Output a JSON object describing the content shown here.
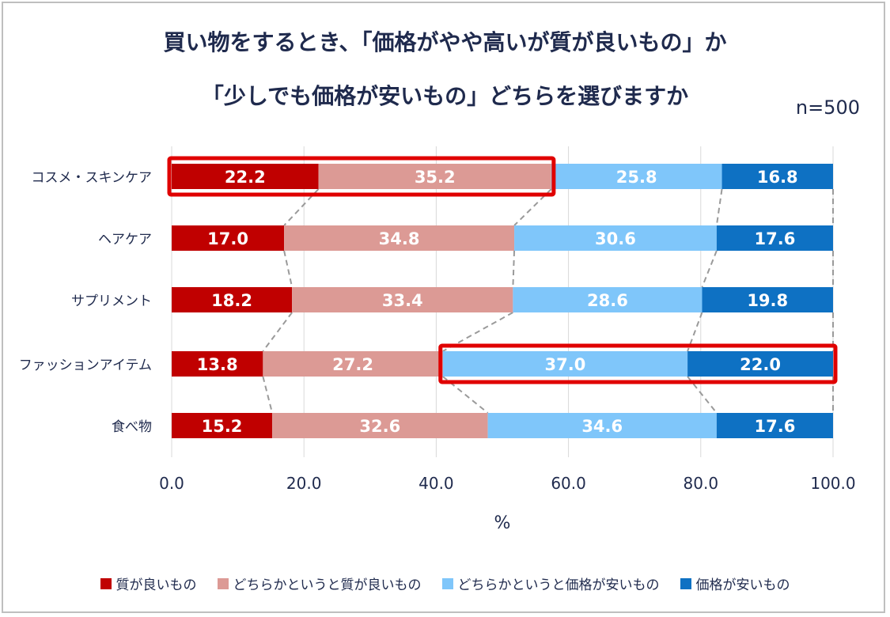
{
  "title_line1": "買い物をするとき、「価格がやや高いが質が良いもの」か",
  "title_line2": "「少しでも価格が安いもの」どちらを選びますか",
  "sample_size": "n=500",
  "chart_data": {
    "type": "bar",
    "orientation": "horizontal",
    "stacked": true,
    "categories": [
      "コスメ・スキンケア",
      "ヘアケア",
      "サプリメント",
      "ファッションアイテム",
      "食べ物"
    ],
    "series": [
      {
        "name": "質が良いもの",
        "color": "#c00000",
        "values": [
          22.2,
          17.0,
          18.2,
          13.8,
          15.2
        ]
      },
      {
        "name": "どちらかというと質が良いもの",
        "color": "#dc9a95",
        "values": [
          35.2,
          34.8,
          33.4,
          27.2,
          32.6
        ]
      },
      {
        "name": "どちらかというと価格が安いもの",
        "color": "#7fc6fa",
        "values": [
          25.8,
          30.6,
          28.6,
          37.0,
          34.6
        ]
      },
      {
        "name": "価格が安いもの",
        "color": "#0e71c3",
        "values": [
          16.8,
          17.6,
          19.8,
          22.0,
          17.6
        ]
      }
    ],
    "xlabel": "%",
    "xlim": [
      0,
      100
    ],
    "xticks": [
      "0.0",
      "20.0",
      "40.0",
      "60.0",
      "80.0",
      "100.0"
    ],
    "highlights": [
      {
        "category": "コスメ・スキンケア",
        "series": [
          "質が良いもの",
          "どちらかというと質が良いもの"
        ],
        "color": "#e00000"
      },
      {
        "category": "ファッションアイテム",
        "series": [
          "どちらかというと価格が安いもの",
          "価格が安いもの"
        ],
        "color": "#e00000"
      }
    ],
    "legend_position": "bottom",
    "grid": "vertical"
  }
}
